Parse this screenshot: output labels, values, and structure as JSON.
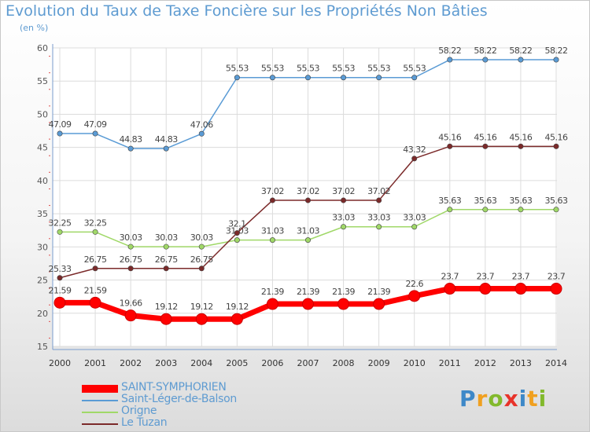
{
  "title": "Evolution du Taux de Taxe Foncière sur les Propriétés Non Bâties",
  "subtitle": "(en %)",
  "logo": {
    "brand": "Proxiti"
  },
  "chart_data": {
    "type": "line",
    "title": "Evolution du Taux de Taxe Foncière sur les Propriétés Non Bâties",
    "subtitle": "(en %)",
    "categories": [
      "2000",
      "2001",
      "2002",
      "2003",
      "2004",
      "2005",
      "2006",
      "2007",
      "2008",
      "2009",
      "2010",
      "2011",
      "2012",
      "2013",
      "2014"
    ],
    "ylim": [
      15,
      60
    ],
    "yticks": [
      15,
      20,
      25,
      30,
      35,
      40,
      45,
      50,
      55,
      60
    ],
    "grid": true,
    "legend_position": "bottom-left",
    "series": [
      {
        "name": "SAINT-SYMPHORIEN",
        "color": "#ff0000",
        "highlight": true,
        "values": [
          21.59,
          21.59,
          19.66,
          19.12,
          19.12,
          19.12,
          21.39,
          21.39,
          21.39,
          21.39,
          22.6,
          23.7,
          23.7,
          23.7,
          23.7
        ],
        "labels": [
          "21.59",
          "21.59",
          "19.66",
          "19.12",
          "19.12",
          "19.12",
          "21.39",
          "21.39",
          "21.39",
          "21.39",
          "22.6",
          "23.7",
          "23.7",
          "23.7",
          "23.7"
        ]
      },
      {
        "name": "Saint-Léger-de-Balson",
        "color": "#5a9bd5",
        "values": [
          47.09,
          47.09,
          44.83,
          44.83,
          47.06,
          55.53,
          55.53,
          55.53,
          55.53,
          55.53,
          55.53,
          58.22,
          58.22,
          58.22,
          58.22
        ],
        "labels": [
          "47.09",
          "47.09",
          "44.83",
          "44.83",
          "47.06",
          "55.53",
          "55.53",
          "55.53",
          "55.53",
          "55.53",
          "55.53",
          "58.22",
          "58.22",
          "58.22",
          "58.22"
        ]
      },
      {
        "name": "Origne",
        "color": "#a0d868",
        "values": [
          32.25,
          32.25,
          30.03,
          30.03,
          30.03,
          31.03,
          31.03,
          31.03,
          33.03,
          33.03,
          33.03,
          35.63,
          35.63,
          35.63,
          35.63
        ],
        "labels": [
          "32.25",
          "32.25",
          "30.03",
          "30.03",
          "30.03",
          "31.03",
          "31.03",
          "31.03",
          "33.03",
          "33.03",
          "33.03",
          "35.63",
          "35.63",
          "35.63",
          "35.63"
        ]
      },
      {
        "name": "Le Tuzan",
        "color": "#7b2a2a",
        "values": [
          25.33,
          26.75,
          26.75,
          26.75,
          26.75,
          32.1,
          37.02,
          37.02,
          37.02,
          37.02,
          43.32,
          45.16,
          45.16,
          45.16,
          45.16
        ],
        "labels": [
          "25.33",
          "26.75",
          "26.75",
          "26.75",
          "26.75",
          "32.1",
          "37.02",
          "37.02",
          "37.02",
          "37.02",
          "43.32",
          "45.16",
          "45.16",
          "45.16",
          "45.16"
        ]
      }
    ]
  }
}
